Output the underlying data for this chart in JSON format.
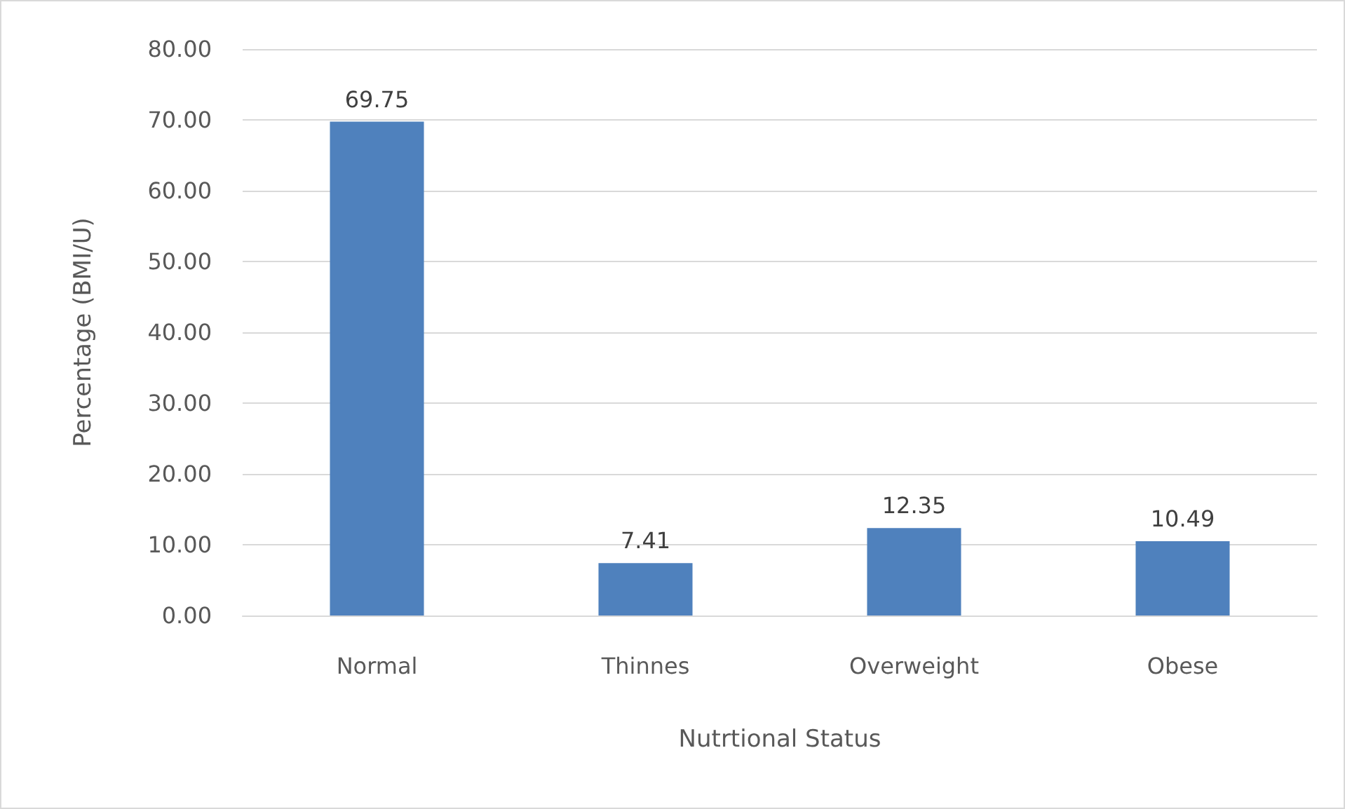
{
  "chart_data": {
    "type": "bar",
    "xlabel": "Nutrtional Status",
    "ylabel": "Percentage (BMI/U)",
    "categories": [
      "Normal",
      "Thinnes",
      "Overweight",
      "Obese"
    ],
    "values": [
      69.75,
      7.41,
      12.35,
      10.49
    ],
    "color": "#4f81bd",
    "ylim": [
      0,
      80
    ],
    "yticks": [
      {
        "value": 0,
        "label": "0.00"
      },
      {
        "value": 10,
        "label": "10.00"
      },
      {
        "value": 20,
        "label": "20.00"
      },
      {
        "value": 30,
        "label": "30.00"
      },
      {
        "value": 40,
        "label": "40.00"
      },
      {
        "value": 50,
        "label": "50.00"
      },
      {
        "value": 60,
        "label": "60.00"
      },
      {
        "value": 70,
        "label": "70.00"
      },
      {
        "value": 80,
        "label": "80.00"
      }
    ],
    "grid": "y",
    "data_labels": true
  }
}
